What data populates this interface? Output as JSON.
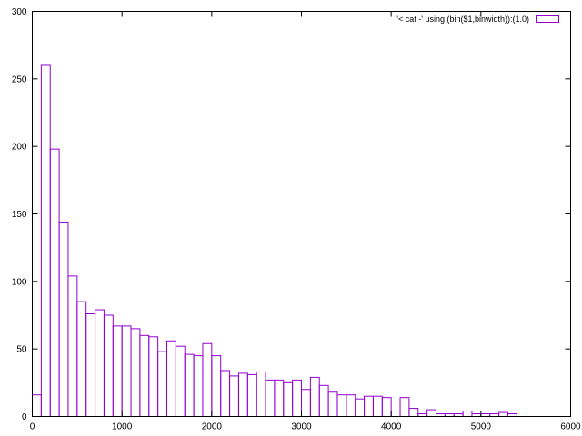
{
  "chart_data": {
    "type": "bar",
    "bin_width": 100,
    "bin_start": 0,
    "values": [
      16,
      260,
      198,
      144,
      104,
      85,
      76,
      79,
      75,
      67,
      67,
      65,
      60,
      59,
      48,
      56,
      52,
      46,
      45,
      54,
      45,
      34,
      30,
      32,
      31,
      33,
      27,
      27,
      25,
      27,
      20,
      29,
      23,
      18,
      16,
      16,
      13,
      15,
      15,
      14,
      4,
      14,
      6,
      2,
      5,
      2,
      2,
      2,
      4,
      2,
      2,
      2,
      3,
      2
    ],
    "xlim": [
      0,
      6000
    ],
    "ylim": [
      0,
      300
    ],
    "xticks": [
      0,
      1000,
      2000,
      3000,
      4000,
      5000,
      6000
    ],
    "yticks": [
      0,
      50,
      100,
      150,
      200,
      250,
      300
    ],
    "grid": false,
    "legend_position": "top-right",
    "series_color": "#9400d3",
    "series": [
      {
        "name": "'< cat -' using (bin($1,binwidth)):(1.0)"
      }
    ]
  }
}
